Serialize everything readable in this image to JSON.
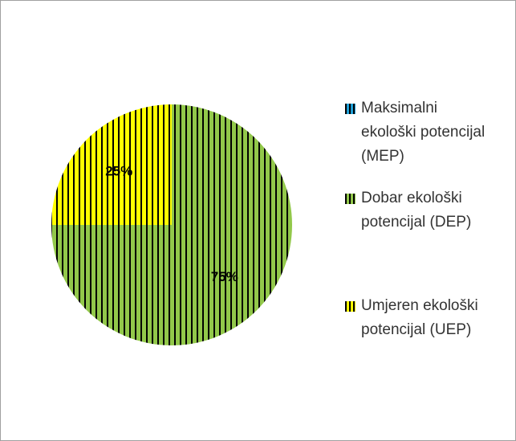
{
  "chart_data": {
    "type": "pie",
    "categories": [
      "Maksimalni ekološki potencijal (MEP)",
      "Dobar ekološki potencijal (DEP)",
      "Umjeren ekološki potencijal (UEP)"
    ],
    "values": [
      0,
      75,
      25
    ],
    "value_labels": [
      null,
      "75%",
      "25%"
    ],
    "colors": [
      "#1fa0d8",
      "#92c84a",
      "#ffff00"
    ],
    "legend": "right"
  }
}
